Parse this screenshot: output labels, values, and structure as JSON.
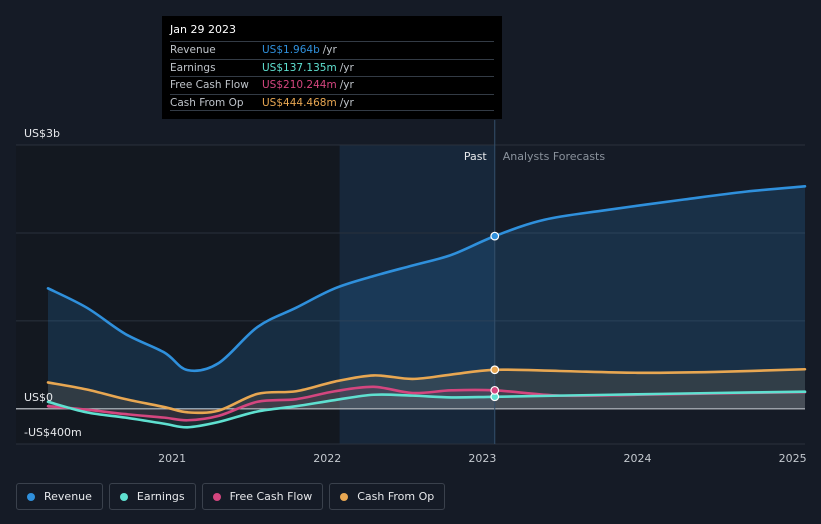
{
  "chart_data": {
    "type": "area",
    "title": "",
    "y_unit_labels": {
      "top": "US$3b",
      "zero": "US$0",
      "bottom": "-US$400m"
    },
    "ylim": [
      -400,
      3000
    ],
    "xlim": [
      2020.2,
      2025.08
    ],
    "x_ticks": [
      {
        "value": 2021,
        "label": "2021"
      },
      {
        "value": 2022,
        "label": "2022"
      },
      {
        "value": 2023,
        "label": "2023"
      },
      {
        "value": 2024,
        "label": "2024"
      },
      {
        "value": 2025,
        "label": "2025"
      }
    ],
    "gridlines_y": [
      3000,
      2000,
      1000,
      0,
      -400
    ],
    "past_divider": 2023.08,
    "highlight_start": 2022.08,
    "divider_labels": {
      "past": "Past",
      "forecast": "Analysts Forecasts"
    },
    "series": [
      {
        "name": "Revenue",
        "color": "#2f90dc",
        "points": [
          [
            2020.2,
            1370
          ],
          [
            2020.45,
            1150
          ],
          [
            2020.7,
            850
          ],
          [
            2020.95,
            640
          ],
          [
            2021.1,
            440
          ],
          [
            2021.3,
            520
          ],
          [
            2021.55,
            930
          ],
          [
            2021.8,
            1150
          ],
          [
            2022.05,
            1370
          ],
          [
            2022.3,
            1510
          ],
          [
            2022.55,
            1630
          ],
          [
            2022.8,
            1750
          ],
          [
            2023.08,
            1964
          ],
          [
            2023.4,
            2150
          ],
          [
            2023.8,
            2260
          ],
          [
            2024.3,
            2380
          ],
          [
            2024.7,
            2470
          ],
          [
            2025.08,
            2530
          ]
        ]
      },
      {
        "name": "Earnings",
        "color": "#5fe0d0",
        "points": [
          [
            2020.2,
            80
          ],
          [
            2020.45,
            -40
          ],
          [
            2020.7,
            -100
          ],
          [
            2020.95,
            -170
          ],
          [
            2021.1,
            -210
          ],
          [
            2021.3,
            -150
          ],
          [
            2021.55,
            -30
          ],
          [
            2021.8,
            30
          ],
          [
            2022.05,
            100
          ],
          [
            2022.3,
            160
          ],
          [
            2022.55,
            150
          ],
          [
            2022.8,
            130
          ],
          [
            2023.08,
            137
          ],
          [
            2023.5,
            150
          ],
          [
            2024.0,
            165
          ],
          [
            2024.5,
            180
          ],
          [
            2025.08,
            195
          ]
        ]
      },
      {
        "name": "Free Cash Flow",
        "color": "#d4467f",
        "points": [
          [
            2020.2,
            30
          ],
          [
            2020.45,
            -10
          ],
          [
            2020.7,
            -60
          ],
          [
            2020.95,
            -100
          ],
          [
            2021.1,
            -130
          ],
          [
            2021.3,
            -80
          ],
          [
            2021.55,
            80
          ],
          [
            2021.8,
            110
          ],
          [
            2022.05,
            200
          ],
          [
            2022.3,
            250
          ],
          [
            2022.55,
            180
          ],
          [
            2022.8,
            210
          ],
          [
            2023.08,
            210
          ],
          [
            2023.5,
            150
          ],
          [
            2024.0,
            160
          ],
          [
            2024.5,
            175
          ],
          [
            2025.08,
            190
          ]
        ]
      },
      {
        "name": "Cash From Op",
        "color": "#e8a752",
        "points": [
          [
            2020.2,
            300
          ],
          [
            2020.45,
            220
          ],
          [
            2020.7,
            110
          ],
          [
            2020.95,
            20
          ],
          [
            2021.1,
            -40
          ],
          [
            2021.3,
            -20
          ],
          [
            2021.55,
            170
          ],
          [
            2021.8,
            200
          ],
          [
            2022.05,
            310
          ],
          [
            2022.3,
            380
          ],
          [
            2022.55,
            340
          ],
          [
            2022.8,
            390
          ],
          [
            2023.08,
            444
          ],
          [
            2023.5,
            430
          ],
          [
            2024.0,
            410
          ],
          [
            2024.5,
            420
          ],
          [
            2025.08,
            450
          ]
        ]
      }
    ],
    "legend": [
      "Revenue",
      "Earnings",
      "Free Cash Flow",
      "Cash From Op"
    ]
  },
  "tooltip": {
    "date": "Jan 29 2023",
    "rows": [
      {
        "label": "Revenue",
        "value": "US$1.964b",
        "unit": "/yr",
        "color": "#2f90dc"
      },
      {
        "label": "Earnings",
        "value": "US$137.135m",
        "unit": "/yr",
        "color": "#5fe0d0"
      },
      {
        "label": "Free Cash Flow",
        "value": "US$210.244m",
        "unit": "/yr",
        "color": "#d4467f"
      },
      {
        "label": "Cash From Op",
        "value": "US$444.468m",
        "unit": "/yr",
        "color": "#e8a752"
      }
    ]
  }
}
